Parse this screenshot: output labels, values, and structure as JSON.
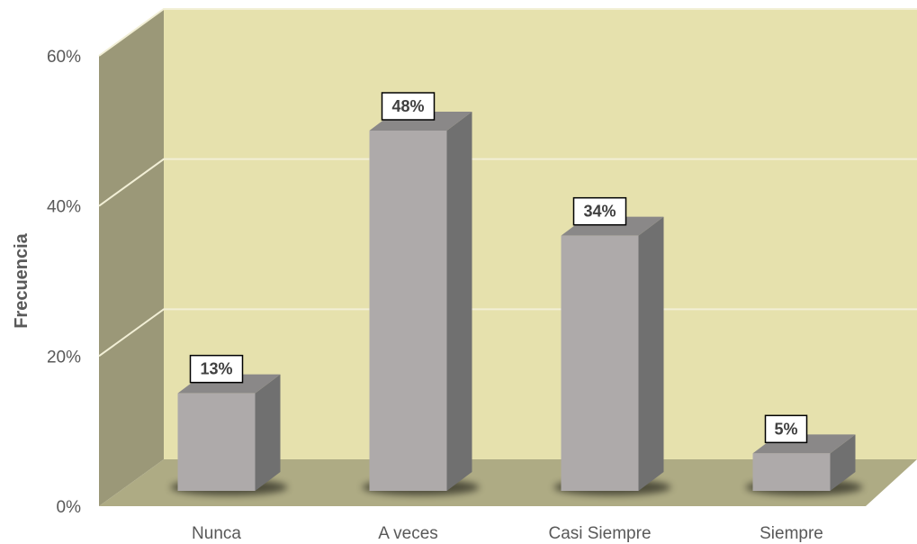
{
  "chart_data": {
    "type": "bar",
    "style": "3d-column",
    "categories": [
      "Nunca",
      "A veces",
      "Casi Siempre",
      "Siempre"
    ],
    "values": [
      13,
      48,
      34,
      5
    ],
    "data_labels": [
      "13%",
      "48%",
      "34%",
      "5%"
    ],
    "title": "",
    "xlabel": "",
    "ylabel": "Frecuencia",
    "ylim": [
      0,
      60
    ],
    "y_ticks": [
      "0%",
      "20%",
      "40%",
      "60%"
    ],
    "y_tick_values": [
      0,
      20,
      40,
      60
    ],
    "grid": true,
    "legend": "none",
    "colors": {
      "back_wall": "#e6e1ad",
      "side_wall": "#9b9878",
      "floor": "#aeab84",
      "bar_front": "#aeaaaa",
      "bar_side": "#707070",
      "bar_top": "#8a8888",
      "gridline": "#f2efd6"
    }
  }
}
